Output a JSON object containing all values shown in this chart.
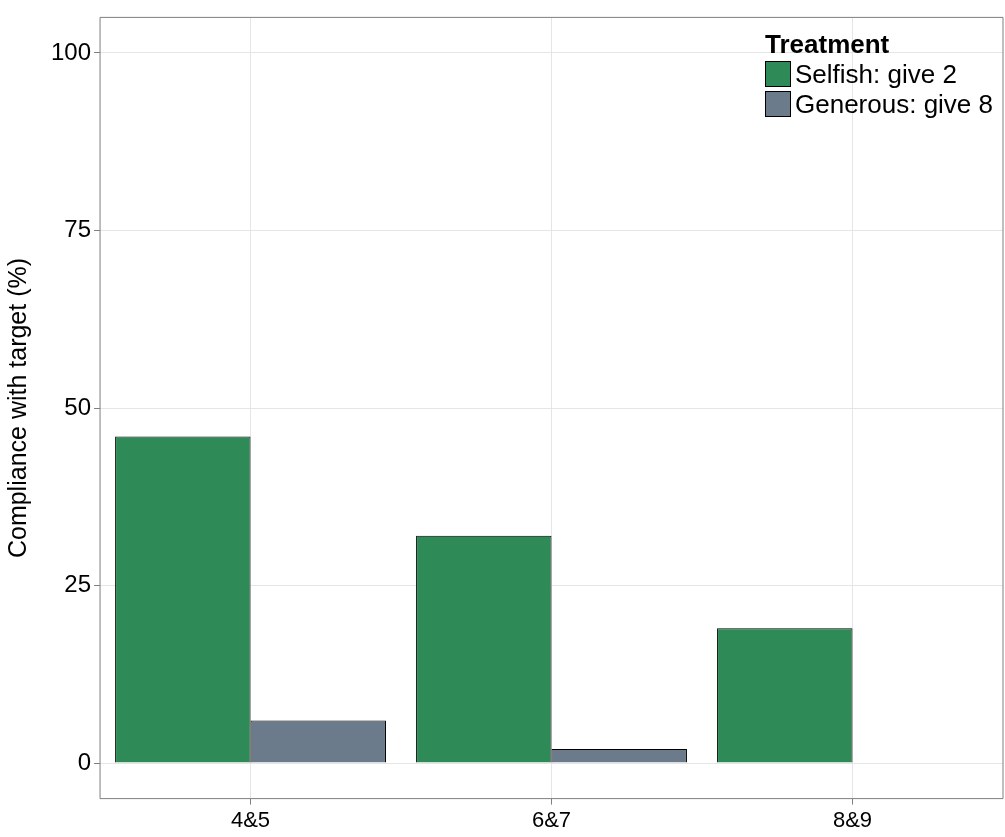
{
  "chart_data": {
    "type": "bar",
    "ylabel": "Compliance with target (%)",
    "legend_title": "Treatment",
    "categories": [
      "4&5",
      "6&7",
      "8&9"
    ],
    "series": [
      {
        "name": "Selfish: give 2",
        "color": "#2e8b57",
        "values": [
          46,
          32,
          19
        ]
      },
      {
        "name": "Generous: give 8",
        "color": "#6c7b8b",
        "values": [
          6,
          2,
          0
        ]
      }
    ],
    "ylim": [
      -5,
      105
    ],
    "yticks": [
      0,
      25,
      50,
      75,
      100
    ],
    "grid": true,
    "legend": "top right"
  }
}
